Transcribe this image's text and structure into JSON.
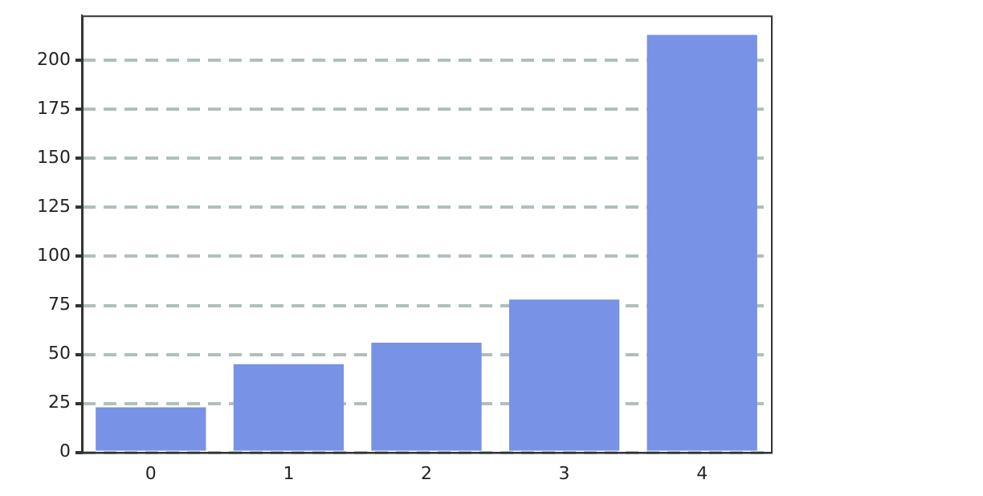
{
  "chart_data": {
    "type": "bar",
    "categories": [
      "0",
      "1",
      "2",
      "3",
      "4"
    ],
    "values": [
      23,
      45,
      56,
      78,
      213
    ],
    "color": "#7892e6",
    "ylim": [
      0,
      223
    ],
    "yticks": [
      0,
      25,
      50,
      75,
      100,
      125,
      150,
      175,
      200
    ],
    "grid": "y",
    "legend": false
  }
}
